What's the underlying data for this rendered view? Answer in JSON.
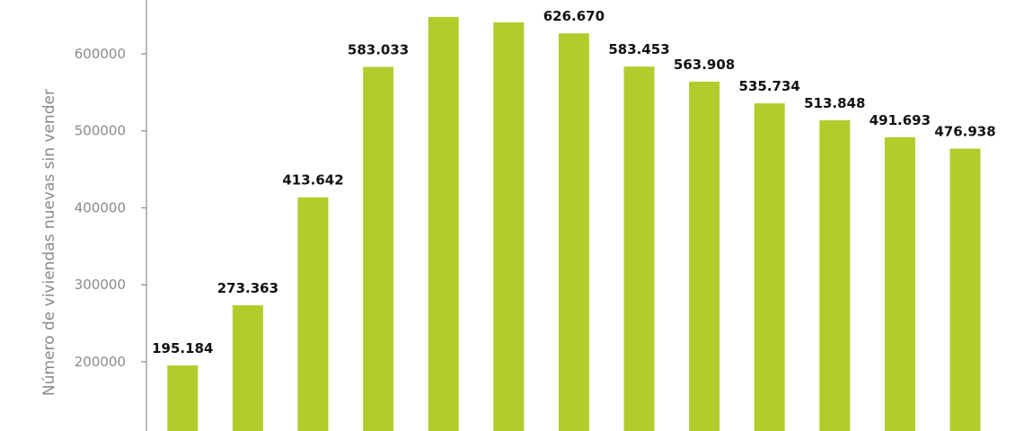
{
  "chart_data": {
    "type": "bar",
    "title": "",
    "xlabel": "",
    "ylabel": "Número de viviendas nuevas sin vender",
    "ylim": [
      110000,
      670000
    ],
    "yticks": [
      200000,
      300000,
      400000,
      500000,
      600000
    ],
    "ytick_labels": [
      "200000",
      "300000",
      "400000",
      "500000",
      "600000"
    ],
    "grid": false,
    "colors": {
      "bar": "#b1cd2c",
      "axis": "#8a8a8a"
    },
    "values": [
      195184,
      273363,
      413642,
      583033,
      648000,
      641000,
      626670,
      583453,
      563908,
      535734,
      513848,
      491693,
      476938
    ],
    "value_labels": [
      "195.184",
      "273.363",
      "413.642",
      "583.033",
      "",
      "",
      "626.670",
      "583.453",
      "563.908",
      "535.734",
      "513.848",
      "491.693",
      "476.938"
    ]
  }
}
